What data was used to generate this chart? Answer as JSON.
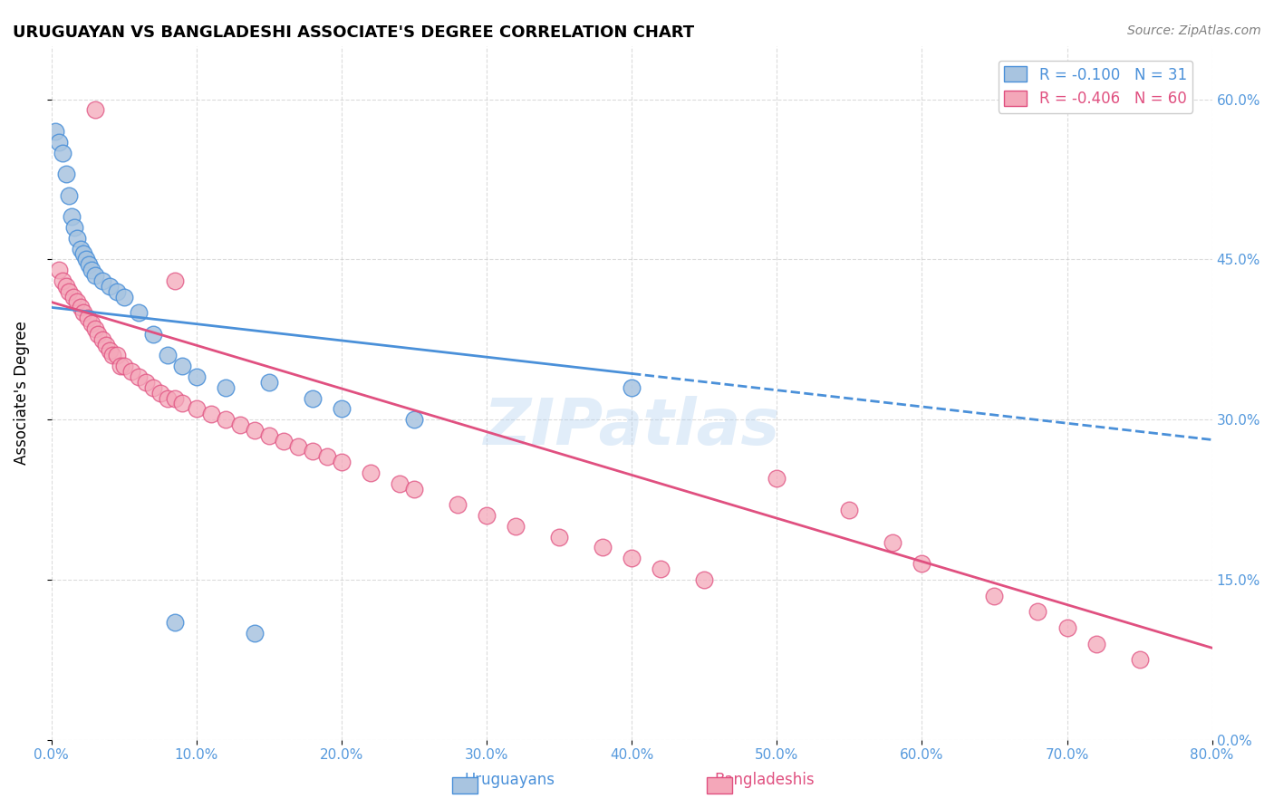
{
  "title": "URUGUAYAN VS BANGLADESHI ASSOCIATE'S DEGREE CORRELATION CHART",
  "source": "Source: ZipAtlas.com",
  "ylabel": "Associate's Degree",
  "x_min": 0.0,
  "x_max": 80.0,
  "y_min": 0.0,
  "y_max": 65.0,
  "x_ticks": [
    0,
    10,
    20,
    30,
    40,
    50,
    60,
    70,
    80
  ],
  "y_ticks": [
    0,
    15,
    30,
    45,
    60
  ],
  "uruguayan_color": "#a8c4e0",
  "bangladeshi_color": "#f4a7b9",
  "uruguayan_R": -0.1,
  "uruguayan_N": 31,
  "bangladeshi_R": -0.406,
  "bangladeshi_N": 60,
  "legend_label_1": "Uruguayans",
  "legend_label_2": "Bangladeshis",
  "watermark": "ZIPatlas",
  "blue_line_color": "#4a90d9",
  "pink_line_color": "#e05080",
  "uruguayan_x": [
    0.3,
    0.5,
    0.8,
    1.0,
    1.2,
    1.4,
    1.6,
    1.8,
    2.0,
    2.2,
    2.4,
    2.6,
    2.8,
    3.0,
    3.5,
    4.0,
    4.5,
    5.0,
    6.0,
    7.0,
    8.0,
    9.0,
    10.0,
    12.0,
    15.0,
    18.0,
    20.0,
    25.0,
    8.5,
    14.0,
    40.0
  ],
  "uruguayan_y": [
    57.0,
    56.0,
    55.0,
    53.0,
    51.0,
    49.0,
    48.0,
    47.0,
    46.0,
    45.5,
    45.0,
    44.5,
    44.0,
    43.5,
    43.0,
    42.5,
    42.0,
    41.5,
    40.0,
    38.0,
    36.0,
    35.0,
    34.0,
    33.0,
    33.5,
    32.0,
    31.0,
    30.0,
    11.0,
    10.0,
    33.0
  ],
  "bangladeshi_x": [
    0.5,
    0.8,
    1.0,
    1.2,
    1.5,
    1.8,
    2.0,
    2.2,
    2.5,
    2.8,
    3.0,
    3.2,
    3.5,
    3.8,
    4.0,
    4.2,
    4.5,
    4.8,
    5.0,
    5.5,
    6.0,
    6.5,
    7.0,
    7.5,
    8.0,
    8.5,
    9.0,
    10.0,
    11.0,
    12.0,
    13.0,
    14.0,
    15.0,
    16.0,
    17.0,
    18.0,
    19.0,
    20.0,
    22.0,
    24.0,
    25.0,
    28.0,
    30.0,
    32.0,
    35.0,
    38.0,
    40.0,
    42.0,
    45.0,
    50.0,
    55.0,
    58.0,
    60.0,
    65.0,
    68.0,
    70.0,
    72.0,
    75.0,
    3.0,
    8.5
  ],
  "bangladeshi_y": [
    44.0,
    43.0,
    42.5,
    42.0,
    41.5,
    41.0,
    40.5,
    40.0,
    39.5,
    39.0,
    38.5,
    38.0,
    37.5,
    37.0,
    36.5,
    36.0,
    36.0,
    35.0,
    35.0,
    34.5,
    34.0,
    33.5,
    33.0,
    32.5,
    32.0,
    32.0,
    31.5,
    31.0,
    30.5,
    30.0,
    29.5,
    29.0,
    28.5,
    28.0,
    27.5,
    27.0,
    26.5,
    26.0,
    25.0,
    24.0,
    23.5,
    22.0,
    21.0,
    20.0,
    19.0,
    18.0,
    17.0,
    16.0,
    15.0,
    24.5,
    21.5,
    18.5,
    16.5,
    13.5,
    12.0,
    10.5,
    9.0,
    7.5,
    59.0,
    43.0
  ],
  "blue_y0": 40.5,
  "blue_slope": -0.155,
  "blue_solid_end": 40.0,
  "pink_y0": 41.0,
  "pink_slope": -0.405
}
